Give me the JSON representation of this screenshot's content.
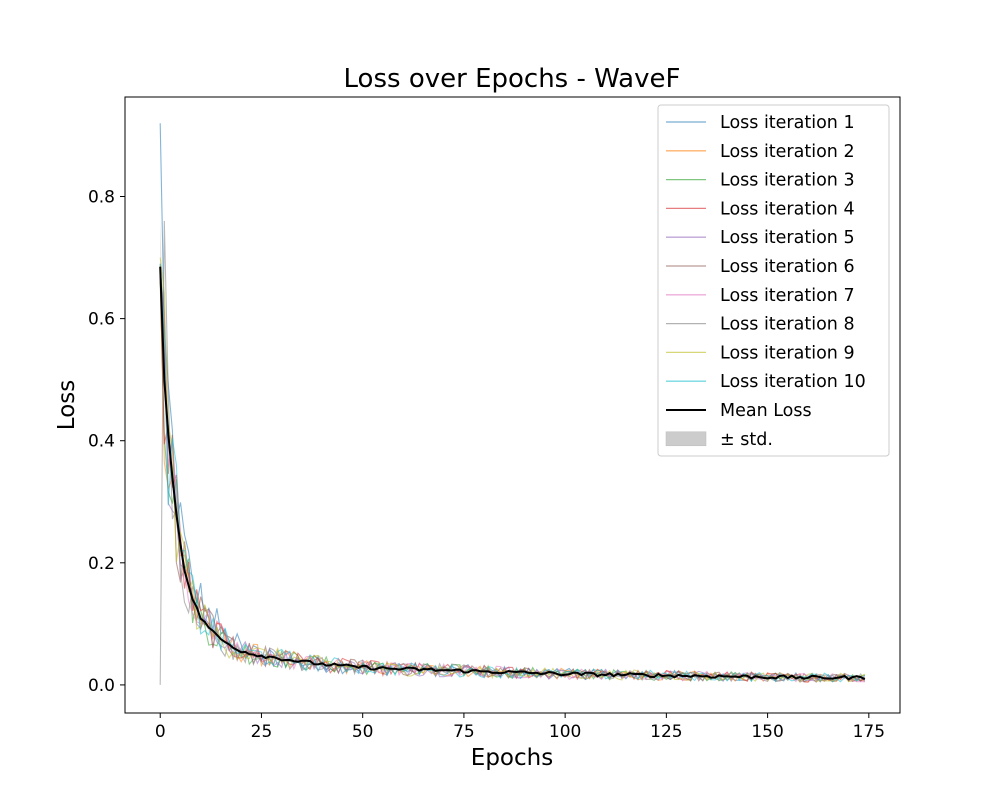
{
  "chart_data": {
    "type": "line",
    "title": "Loss over Epochs - WaveF",
    "xlabel": "Epochs",
    "ylabel": "Loss",
    "xlim": [
      -8.7,
      182.7
    ],
    "ylim": [
      -0.046,
      0.963
    ],
    "xticks": [
      0,
      25,
      50,
      75,
      100,
      125,
      150,
      175
    ],
    "yticks": [
      0.0,
      0.2,
      0.4,
      0.6,
      0.8
    ],
    "ytick_labels": [
      "0.0",
      "0.2",
      "0.4",
      "0.6",
      "0.8"
    ],
    "grid": false,
    "legend_position": "upper right",
    "epochs": 175,
    "mean_loss": {
      "name": "Mean Loss",
      "color": "#000000",
      "x": [
        0,
        1,
        2,
        3,
        4,
        5,
        6,
        7,
        8,
        9,
        10,
        12,
        14,
        16,
        18,
        20,
        22,
        25,
        30,
        35,
        40,
        45,
        50,
        55,
        60,
        65,
        70,
        75,
        80,
        85,
        90,
        95,
        100,
        110,
        120,
        130,
        140,
        150,
        160,
        165,
        170,
        174
      ],
      "y": [
        0.685,
        0.5,
        0.41,
        0.34,
        0.28,
        0.23,
        0.19,
        0.165,
        0.14,
        0.125,
        0.11,
        0.095,
        0.08,
        0.07,
        0.062,
        0.056,
        0.052,
        0.048,
        0.043,
        0.038,
        0.034,
        0.031,
        0.029,
        0.027,
        0.026,
        0.025,
        0.024,
        0.023,
        0.022,
        0.021,
        0.02,
        0.019,
        0.018,
        0.017,
        0.016,
        0.015,
        0.014,
        0.013,
        0.012,
        0.012,
        0.012,
        0.012
      ]
    },
    "iterations": [
      {
        "name": "Loss iteration 1",
        "color": "#1f77b4",
        "start": 0.92
      },
      {
        "name": "Loss iteration 2",
        "color": "#ff7f0e",
        "start": 0.68
      },
      {
        "name": "Loss iteration 3",
        "color": "#2ca02c",
        "start": 0.66
      },
      {
        "name": "Loss iteration 4",
        "color": "#d62728",
        "start": 0.67
      },
      {
        "name": "Loss iteration 5",
        "color": "#9467bd",
        "start": 0.69
      },
      {
        "name": "Loss iteration 6",
        "color": "#8c564b",
        "start": 0.68
      },
      {
        "name": "Loss iteration 7",
        "color": "#e377c2",
        "start": 0.67
      },
      {
        "name": "Loss iteration 8",
        "color": "#7f7f7f",
        "start": 0.0
      },
      {
        "name": "Loss iteration 9",
        "color": "#bcbd22",
        "start": 0.7
      },
      {
        "name": "Loss iteration 10",
        "color": "#17becf",
        "start": 0.69
      }
    ],
    "std_band": {
      "name": "± std.",
      "color": "#cccccc"
    },
    "legend": [
      "Loss iteration 1",
      "Loss iteration 2",
      "Loss iteration 3",
      "Loss iteration 4",
      "Loss iteration 5",
      "Loss iteration 6",
      "Loss iteration 7",
      "Loss iteration 8",
      "Loss iteration 9",
      "Loss iteration 10",
      "Mean Loss",
      "± std."
    ]
  }
}
